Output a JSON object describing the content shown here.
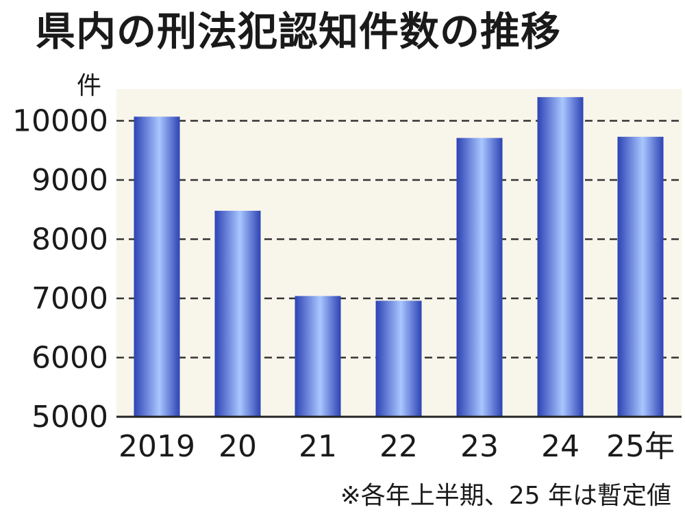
{
  "chart_data": {
    "type": "bar",
    "title": "県内の刑法犯認知件数の推移",
    "ylabel": "件",
    "categories": [
      "2019",
      "20",
      "21",
      "22",
      "23",
      "24",
      "25年"
    ],
    "values": [
      10070,
      8480,
      7040,
      6960,
      9710,
      10400,
      9730
    ],
    "ylim": [
      5000,
      10500
    ],
    "yticks": [
      5000,
      6000,
      7000,
      8000,
      9000,
      10000
    ],
    "grid": true,
    "note": "※各年上半期、25 年は暫定値"
  },
  "colors": {
    "plot_background": "#f8f5ea",
    "bar_dark": "#2d43b4",
    "bar_light": "#a9c6ff",
    "grid": "#333333"
  }
}
